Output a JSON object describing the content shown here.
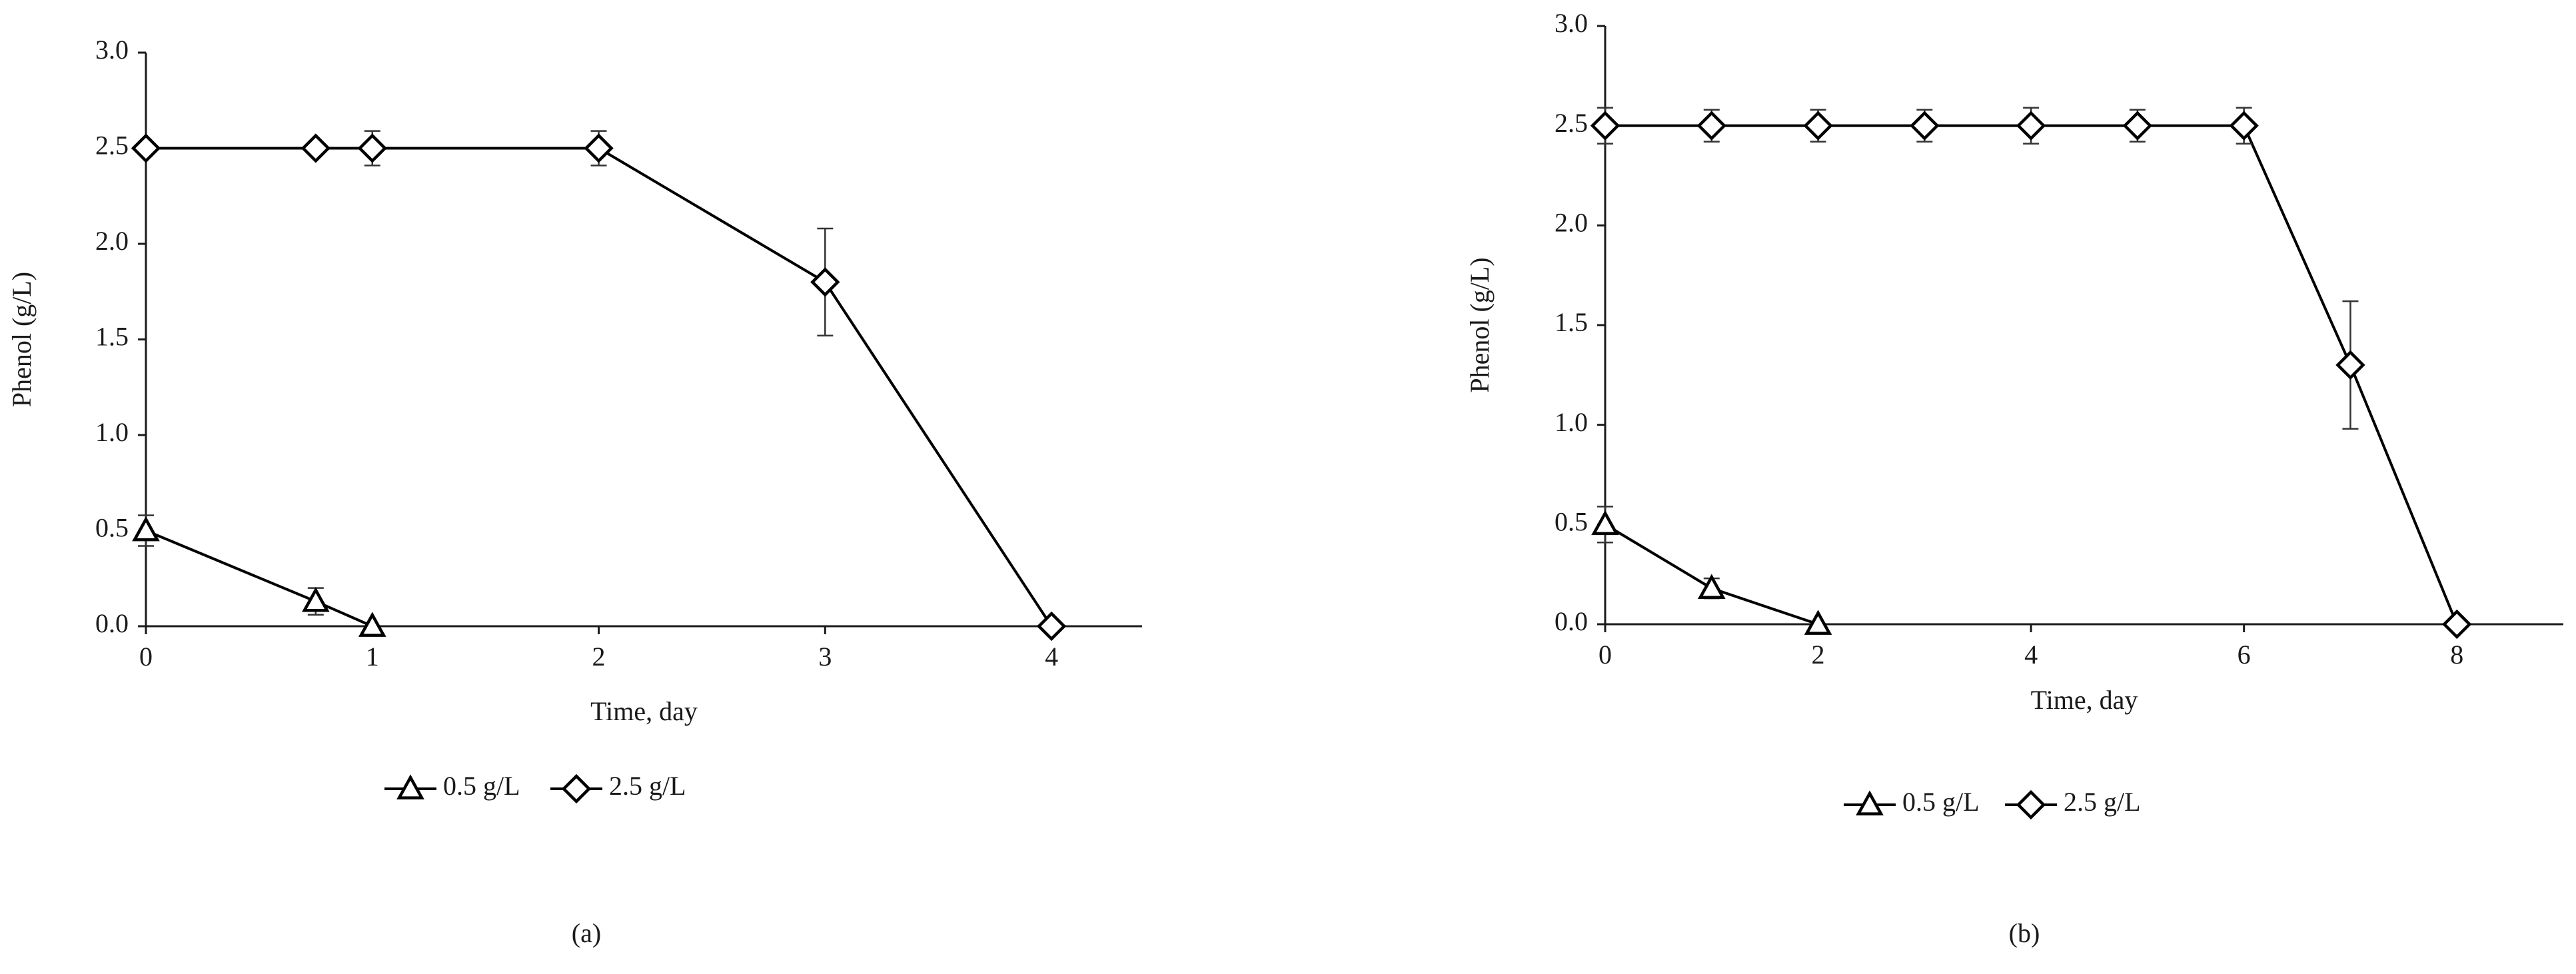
{
  "chart_data": [
    {
      "type": "line",
      "panel_label": "(a)",
      "xlabel": "Time, day",
      "ylabel": "Phenol (g/L)",
      "xlim": [
        0,
        4.4
      ],
      "xticks": [
        0,
        1,
        2,
        3,
        4
      ],
      "ylim": [
        0,
        3
      ],
      "yticks": [
        {
          "value": 0,
          "label": "0.0"
        },
        0.5,
        {
          "value": 1,
          "label": "1.0"
        },
        1.5,
        {
          "value": 2,
          "label": "2.0"
        },
        2.5,
        {
          "value": 3,
          "label": "3.0"
        }
      ],
      "series": [
        {
          "name": "0.5 g/L",
          "marker": "triangle",
          "color": "#000000",
          "x": [
            0,
            0.75,
            1
          ],
          "values": [
            0.5,
            0.13,
            0
          ],
          "errors": [
            0.08,
            0.07,
            0
          ]
        },
        {
          "name": "2.5 g/L",
          "marker": "diamond",
          "color": "#000000",
          "x": [
            0,
            0.75,
            1,
            2,
            3,
            4
          ],
          "values": [
            2.5,
            2.5,
            2.5,
            2.5,
            1.8,
            0
          ],
          "errors": [
            0,
            0,
            0.09,
            0.09,
            0.28,
            0
          ]
        }
      ]
    },
    {
      "type": "line",
      "panel_label": "(b)",
      "xlabel": "Time, day",
      "ylabel": "Phenol (g/L)",
      "xlim": [
        0,
        9
      ],
      "xticks": [
        0,
        2,
        4,
        6,
        8
      ],
      "ylim": [
        0,
        3
      ],
      "yticks": [
        {
          "value": 0,
          "label": "0.0"
        },
        0.5,
        {
          "value": 1,
          "label": "1.0"
        },
        1.5,
        {
          "value": 2,
          "label": "2.0"
        },
        2.5,
        {
          "value": 3,
          "label": "3.0"
        }
      ],
      "series": [
        {
          "name": "0.5 g/L",
          "marker": "triangle",
          "color": "#000000",
          "x": [
            0,
            1,
            2
          ],
          "values": [
            0.5,
            0.18,
            0
          ],
          "errors": [
            0.09,
            0.05,
            0
          ]
        },
        {
          "name": "2.5 g/L",
          "marker": "diamond",
          "color": "#000000",
          "x": [
            0,
            1,
            2,
            3,
            4,
            5,
            6,
            7,
            8
          ],
          "values": [
            2.5,
            2.5,
            2.5,
            2.5,
            2.5,
            2.5,
            2.5,
            1.3,
            0
          ],
          "errors": [
            0.09,
            0.08,
            0.08,
            0.08,
            0.09,
            0.08,
            0.09,
            0.32,
            0
          ]
        }
      ]
    }
  ]
}
